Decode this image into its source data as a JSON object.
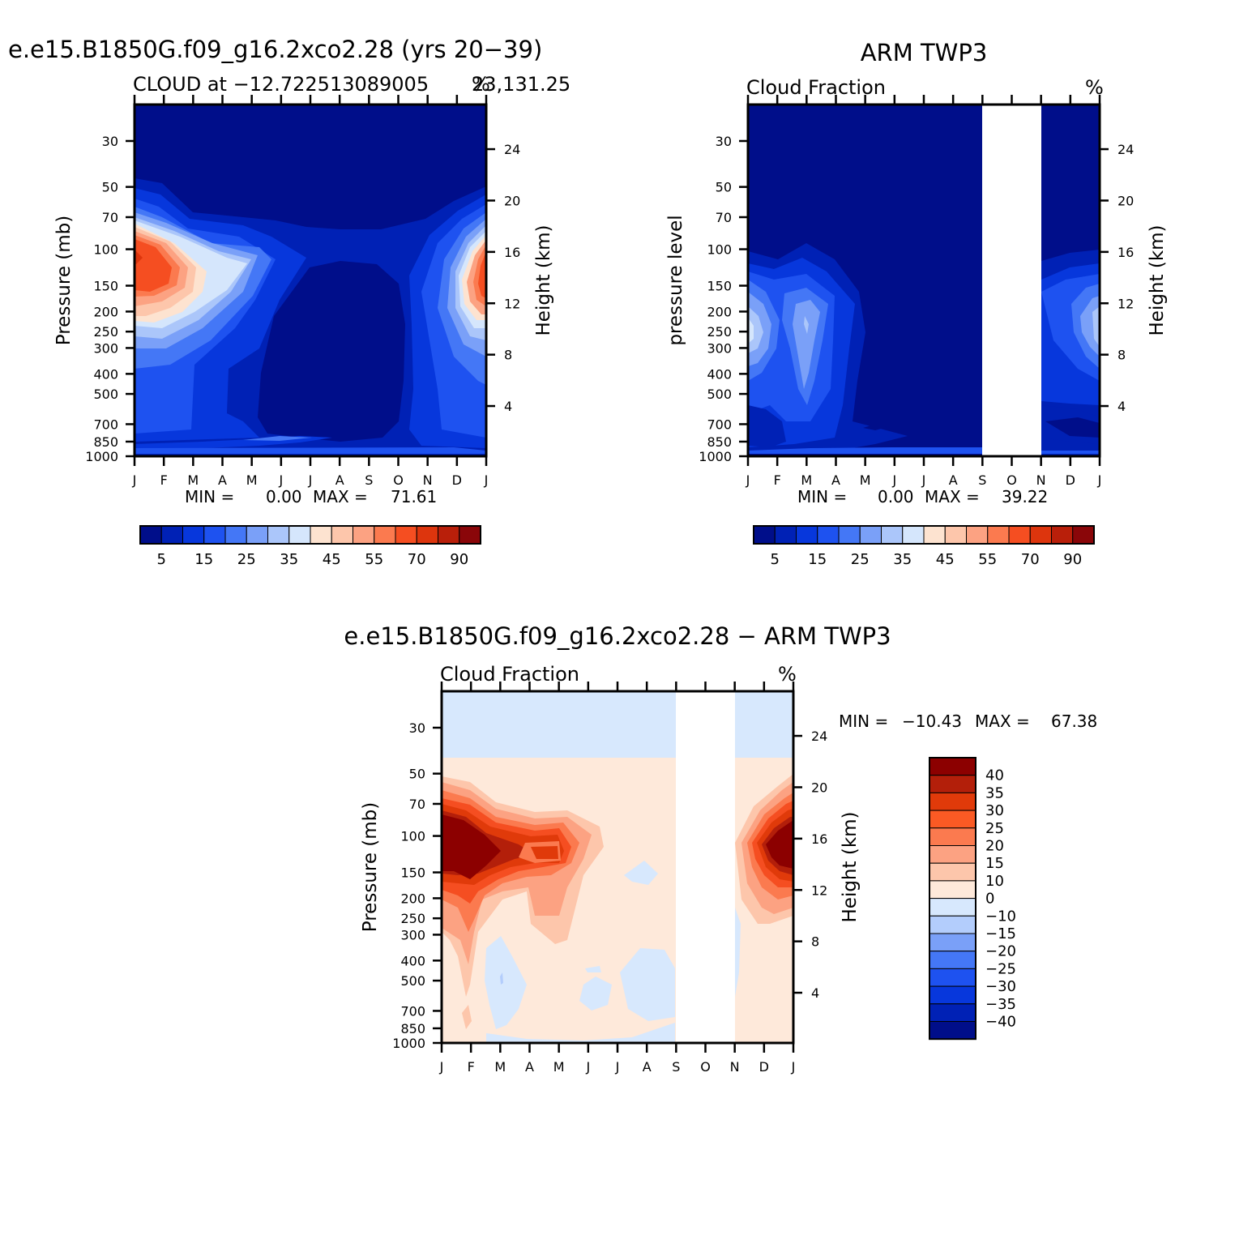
{
  "chart_data": [
    {
      "type": "heatmap",
      "title": "e.e15.B1850G.f09_g16.2xco2.28 (yrs 20−39)",
      "left_title": "CLOUD at −12.722513089005",
      "right_title": "%",
      "right_title_extra": "23,131.25",
      "ylabel": "Pressure (mb)",
      "y2label": "Height (km)",
      "x_ticks": [
        "J",
        "F",
        "M",
        "A",
        "M",
        "J",
        "J",
        "A",
        "S",
        "O",
        "N",
        "D",
        "J"
      ],
      "y_ticks": [
        "30",
        "50",
        "70",
        "100",
        "150",
        "200",
        "250",
        "300",
        "400",
        "500",
        "700",
        "850",
        "1000"
      ],
      "y2_ticks": [
        "24",
        "20",
        "16",
        "12",
        "8",
        "4"
      ],
      "ylim": [
        1000,
        20
      ],
      "stats": {
        "min_label": "MIN =",
        "min": "0.00",
        "max_label": "MAX =",
        "max": "71.61"
      },
      "colorbar_labels": [
        "5",
        "15",
        "25",
        "35",
        "45",
        "55",
        "70",
        "90"
      ],
      "features": [
        {
          "name": "high cloud Jan",
          "month": 0.2,
          "pressure": 130,
          "value": 71.61
        },
        {
          "name": "high cloud Dec",
          "month": 11.9,
          "pressure": 130,
          "value": 65
        }
      ]
    },
    {
      "type": "heatmap",
      "title": "ARM TWP3",
      "left_title": "Cloud Fraction",
      "right_title": "%",
      "ylabel": "pressure level",
      "y2label": "Height (km)",
      "x_ticks": [
        "J",
        "F",
        "M",
        "A",
        "M",
        "J",
        "J",
        "A",
        "S",
        "O",
        "N",
        "D",
        "J"
      ],
      "y_ticks": [
        "30",
        "50",
        "70",
        "100",
        "150",
        "200",
        "250",
        "300",
        "400",
        "500",
        "700",
        "850",
        "1000"
      ],
      "y2_ticks": [
        "24",
        "20",
        "16",
        "12",
        "8",
        "4"
      ],
      "ylim": [
        1000,
        20
      ],
      "missing_months": [
        "S",
        "O"
      ],
      "stats": {
        "min_label": "MIN =",
        "min": "0.00",
        "max_label": "MAX =",
        "max": "39.22"
      },
      "colorbar_labels": [
        "5",
        "15",
        "25",
        "35",
        "45",
        "55",
        "70",
        "90"
      ]
    },
    {
      "type": "heatmap",
      "title": "e.e15.B1850G.f09_g16.2xco2.28 − ARM TWP3",
      "left_title": "Cloud Fraction",
      "right_title": "%",
      "ylabel": "Pressure (mb)",
      "y2label": "Height (km)",
      "x_ticks": [
        "J",
        "F",
        "M",
        "A",
        "M",
        "J",
        "J",
        "A",
        "S",
        "O",
        "N",
        "D",
        "J"
      ],
      "y_ticks": [
        "30",
        "50",
        "70",
        "100",
        "150",
        "200",
        "250",
        "300",
        "400",
        "500",
        "700",
        "850",
        "1000"
      ],
      "y2_ticks": [
        "24",
        "20",
        "16",
        "12",
        "8",
        "4"
      ],
      "ylim": [
        1000,
        20
      ],
      "missing_months": [
        "S",
        "O"
      ],
      "stats": {
        "min_label": "MIN =",
        "min": "−10.43",
        "max_label": "MAX =",
        "max": "67.38"
      },
      "colorbar_labels": [
        "40",
        "35",
        "30",
        "25",
        "20",
        "15",
        "10",
        "0",
        "−10",
        "−15",
        "−20",
        "−25",
        "−30",
        "−35",
        "−40"
      ]
    }
  ],
  "colors": {
    "cloud_scale": [
      "#000e8a",
      "#0021b5",
      "#0737dc",
      "#1e52f0",
      "#4477f6",
      "#7aa0f8",
      "#abc6fa",
      "#d5e6fc",
      "#fde3d0",
      "#fdc6ab",
      "#fca282",
      "#fb7a4f",
      "#f54e21",
      "#dd350d",
      "#b91f0a",
      "#8a0609"
    ],
    "diff_scale": [
      "#8c0000",
      "#b31f0a",
      "#e03a0a",
      "#fa5a24",
      "#fb7a4f",
      "#fca282",
      "#fdc6ab",
      "#fee9da",
      "#d7e8fd",
      "#b3cdfc",
      "#7aa0f8",
      "#4477f6",
      "#1e52f0",
      "#0737dc",
      "#0021b5",
      "#000e8a"
    ]
  }
}
